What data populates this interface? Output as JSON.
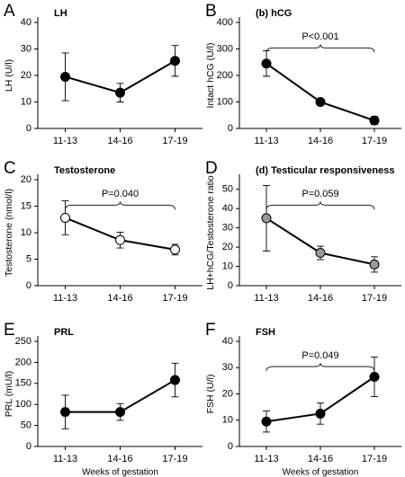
{
  "chart_data": [
    {
      "type": "line",
      "panel_label": "A",
      "title": "LH",
      "ylabel": "LH (U/l)",
      "categories": [
        "11-13",
        "14-16",
        "17-19"
      ],
      "values": [
        19.5,
        13.5,
        25.5
      ],
      "errors": [
        9,
        3.5,
        5.8
      ],
      "marker_color": "#000000",
      "ylim": [
        0,
        40
      ],
      "yticks": [
        0,
        10,
        20,
        30,
        40
      ]
    },
    {
      "type": "line",
      "panel_label": "B",
      "title": "(b) hCG",
      "ylabel": "Intact hCG (U/l)",
      "categories": [
        "11-13",
        "14-16",
        "17-19"
      ],
      "values": [
        245,
        100,
        30
      ],
      "errors": [
        48,
        12,
        15
      ],
      "marker_color": "#000000",
      "ylim": [
        0,
        400
      ],
      "yticks": [
        0,
        100,
        200,
        300,
        400
      ],
      "annotation": "P<0.001"
    },
    {
      "type": "line",
      "panel_label": "C",
      "title": "Testosterone",
      "ylabel": "Testosterone (nmol/l)",
      "categories": [
        "11-13",
        "14-16",
        "17-19"
      ],
      "values": [
        12.8,
        8.6,
        6.8
      ],
      "errors": [
        3.2,
        1.5,
        1.0
      ],
      "marker_color": "#ffffff",
      "ylim": [
        0,
        20
      ],
      "yticks": [
        0,
        5,
        10,
        15,
        20
      ],
      "annotation": "P=0.040"
    },
    {
      "type": "line",
      "panel_label": "D",
      "title": "(d) Testicular responsiveness",
      "ylabel": "LH+hCG/Testosterone ratio",
      "categories": [
        "11-13",
        "14-16",
        "17-19"
      ],
      "values": [
        35,
        17,
        11
      ],
      "errors": [
        17,
        3.5,
        4
      ],
      "marker_color": "#999999",
      "ylim": [
        0,
        55
      ],
      "yticks": [
        0,
        10,
        20,
        30,
        40,
        50
      ],
      "annotation": "P=0.059"
    },
    {
      "type": "line",
      "panel_label": "E",
      "title": "PRL",
      "ylabel": "PRL (mU/l)",
      "xlabel": "Weeks of gestation",
      "categories": [
        "11-13",
        "14-16",
        "17-19"
      ],
      "values": [
        82,
        82,
        158
      ],
      "errors": [
        40,
        20,
        40
      ],
      "marker_color": "#000000",
      "ylim": [
        0,
        250
      ],
      "yticks": [
        0,
        50,
        100,
        150,
        200,
        250
      ]
    },
    {
      "type": "line",
      "panel_label": "F",
      "title": "FSH",
      "ylabel": "FSH (U/l)",
      "xlabel": "Weeks of gestation",
      "categories": [
        "11-13",
        "14-16",
        "17-19"
      ],
      "values": [
        9.5,
        12.5,
        26.5
      ],
      "errors": [
        4,
        4,
        7.5
      ],
      "marker_color": "#000000",
      "ylim": [
        0,
        40
      ],
      "yticks": [
        0,
        10,
        20,
        30,
        40
      ],
      "annotation": "P=0.049"
    }
  ]
}
